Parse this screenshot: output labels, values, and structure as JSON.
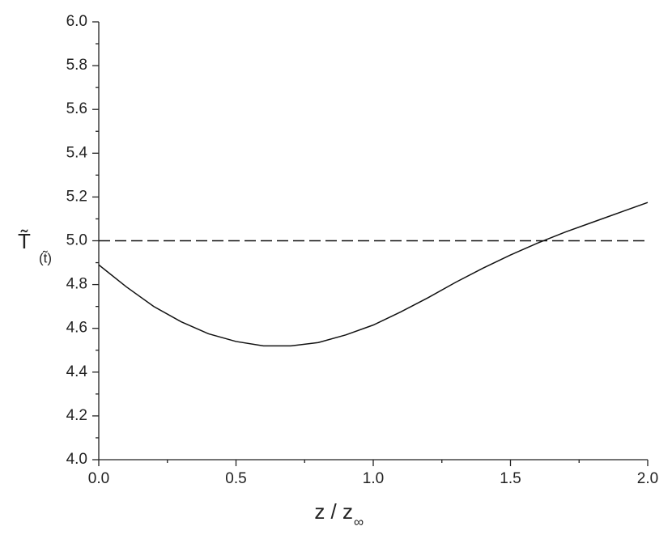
{
  "chart_data": {
    "type": "line",
    "x_label": "z / z",
    "x_label_subscript": "∞",
    "y_label": "T̃",
    "y_label_subscript": "(t̃)",
    "x": [
      0,
      0.1,
      0.2,
      0.3,
      0.4,
      0.5,
      0.6,
      0.7,
      0.8,
      0.9,
      1.0,
      1.1,
      1.2,
      1.3,
      1.4,
      1.5,
      1.6,
      1.7,
      1.8,
      1.9,
      2.0
    ],
    "series": [
      {
        "color": "#111111",
        "dash": false,
        "values": [
          4.89,
          4.79,
          4.7,
          4.63,
          4.575,
          4.54,
          4.52,
          4.52,
          4.535,
          4.57,
          4.615,
          4.675,
          4.74,
          4.81,
          4.875,
          4.935,
          4.99,
          5.04,
          5.085,
          5.13,
          5.175
        ]
      },
      {
        "color": "#111111",
        "dash": true,
        "values": [
          5.0,
          5.0,
          5.0,
          5.0,
          5.0,
          5.0,
          5.0,
          5.0,
          5.0,
          5.0,
          5.0,
          5.0,
          5.0,
          5.0,
          5.0,
          5.0,
          5.0,
          5.0,
          5.0,
          5.0,
          5.0
        ]
      }
    ],
    "xlim": [
      0,
      2
    ],
    "ylim": [
      4,
      6
    ],
    "xticks": [
      {
        "value": 0,
        "label": "0.0"
      },
      0.5,
      {
        "value": 1,
        "label": "1.0"
      },
      1.5,
      {
        "value": 2,
        "label": "2.0"
      }
    ],
    "xminorticks": [
      0.25,
      0.75,
      1.25,
      1.75
    ],
    "yticks": [
      {
        "value": 4,
        "label": "4.0"
      },
      4.2,
      4.4,
      4.6,
      4.8,
      {
        "value": 5,
        "label": "5.0"
      },
      5.2,
      5.4,
      5.6,
      5.8,
      {
        "value": 6,
        "label": "6.0"
      }
    ],
    "yminorticks": [
      4.1,
      4.3,
      4.5,
      4.7,
      4.9,
      5.1,
      5.3,
      5.5,
      5.7,
      5.9
    ]
  }
}
